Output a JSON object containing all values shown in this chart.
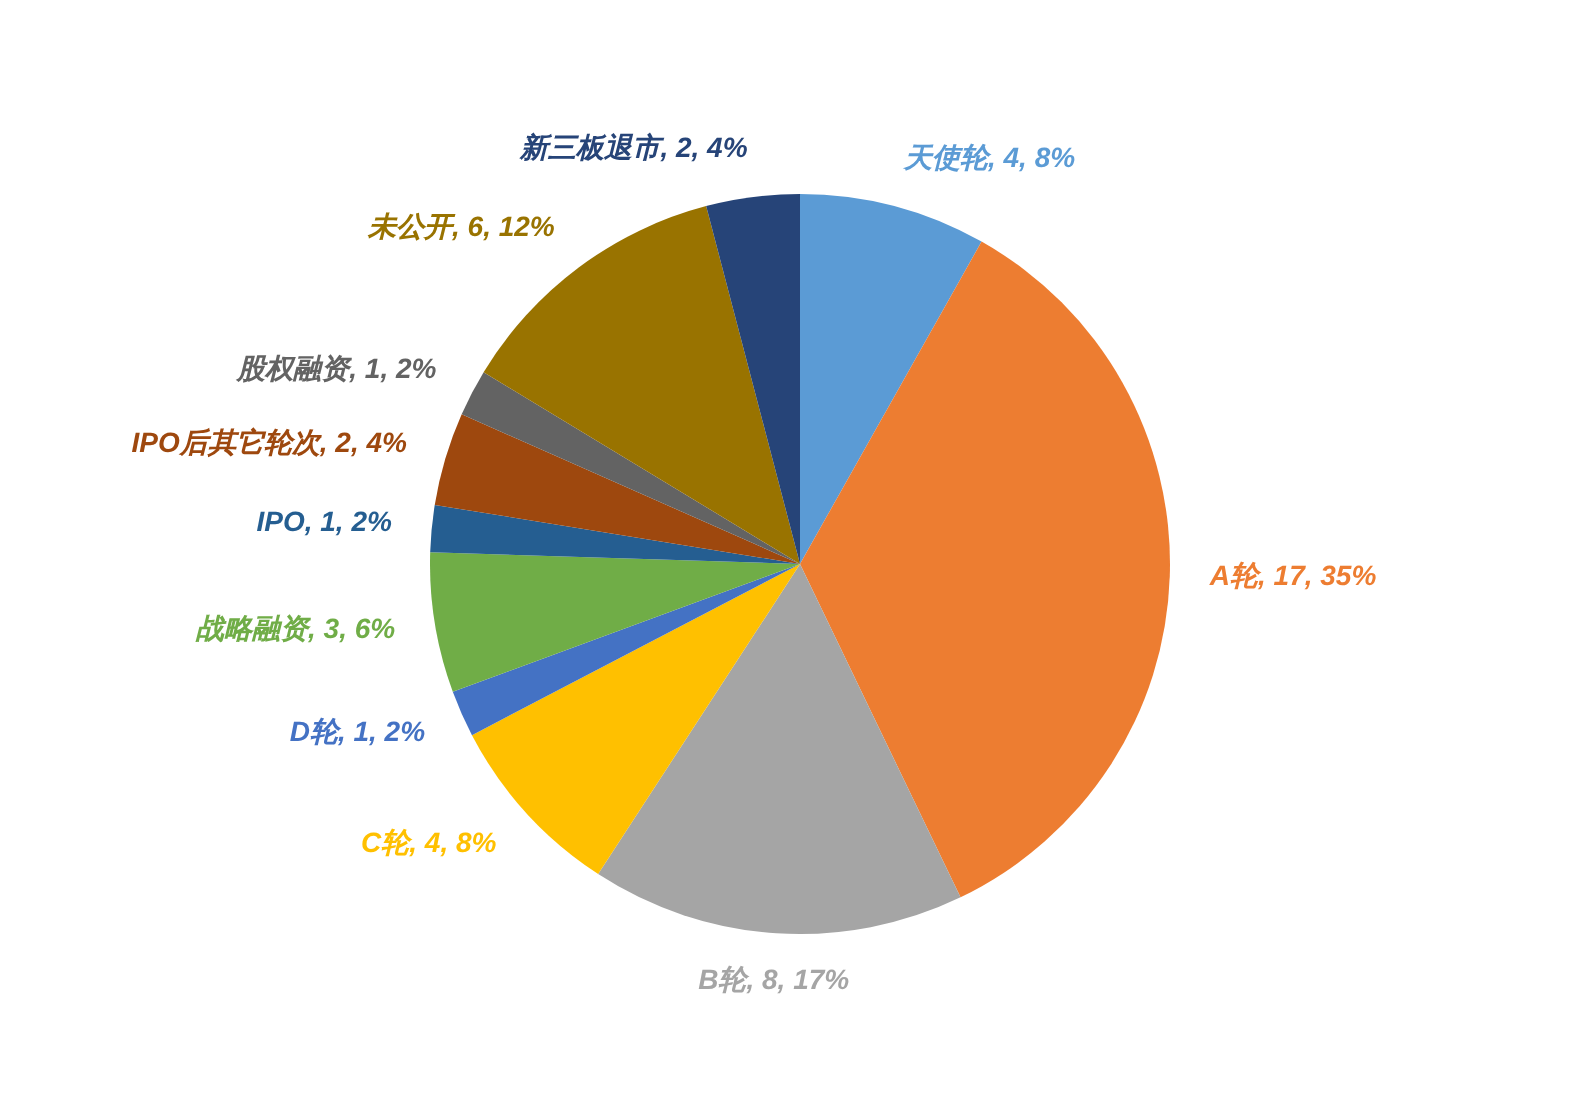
{
  "chart_data": {
    "type": "pie",
    "categories": [
      "天使轮",
      "A轮",
      "B轮",
      "C轮",
      "D轮",
      "战略融资",
      "IPO",
      "IPO后其它轮次",
      "股权融资",
      "未公开",
      "新三板退市"
    ],
    "values": [
      4,
      17,
      8,
      4,
      1,
      3,
      1,
      2,
      1,
      6,
      2
    ],
    "value_labels": [
      "4, 8%",
      "17, 35%",
      "8, 17%",
      "4, 8%",
      "1, 2%",
      "3, 6%",
      "1, 2%",
      "2, 4%",
      "1, 2%",
      "6, 12%",
      "2, 4%"
    ],
    "colors": [
      "#5b9bd5",
      "#ed7d31",
      "#a5a5a5",
      "#ffc000",
      "#4472c4",
      "#70ad47",
      "#255e91",
      "#9e480e",
      "#636363",
      "#997300",
      "#264478"
    ]
  }
}
